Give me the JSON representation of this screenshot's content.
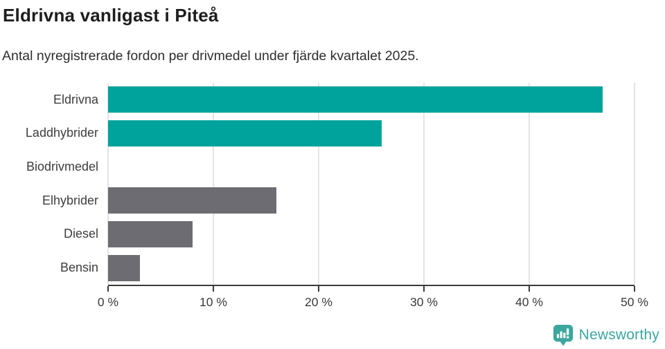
{
  "header": {
    "title": "Eldrivna vanligast i Piteå",
    "subtitle": "Antal nyregistrerade fordon per drivmedel under fjärde kvartalet 2025."
  },
  "chart_data": {
    "type": "bar",
    "orientation": "horizontal",
    "categories": [
      "Eldrivna",
      "Laddhybrider",
      "Biodrivmedel",
      "Elhybrider",
      "Diesel",
      "Bensin"
    ],
    "values": [
      47,
      26,
      0,
      16,
      8,
      3
    ],
    "unit": "%",
    "xlim": [
      0,
      50
    ],
    "xticks": [
      0,
      10,
      20,
      30,
      40,
      50
    ],
    "xtick_suffix": " %",
    "bar_colors": [
      "#00A39B",
      "#00A39B",
      "#00A39B",
      "#6C6C72",
      "#6C6C72",
      "#6C6C72"
    ],
    "grid": "vertical-only",
    "legend": "none",
    "colors": {
      "teal": "#00A39B",
      "gray": "#6C6C72",
      "gridline": "#e4e4e4",
      "axis": "#3a3a3a"
    }
  },
  "footer": {
    "brand": "Newsworthy",
    "brand_color": "#3BA69E",
    "logo_icon": "bar-chart-speech-bubble-icon"
  }
}
